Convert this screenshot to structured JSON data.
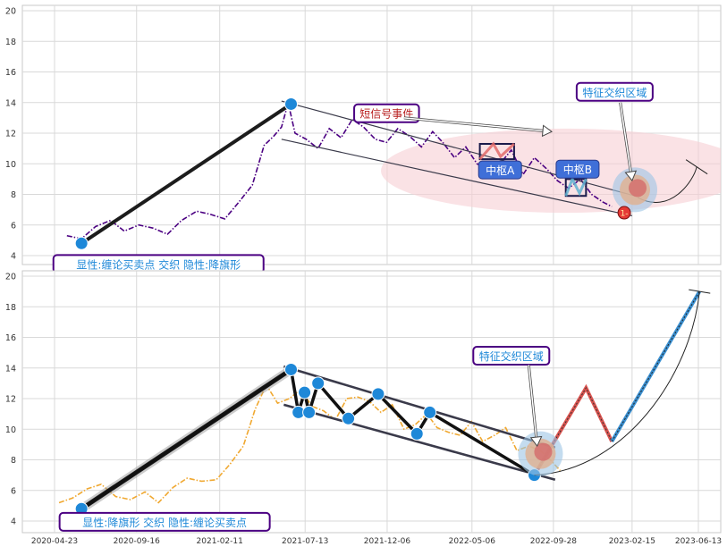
{
  "chart_data": [
    {
      "type": "line",
      "panel": "top",
      "ylim": [
        3.5,
        20.3
      ],
      "yticks": [
        4,
        6,
        8,
        10,
        12,
        14,
        16,
        18,
        20
      ],
      "grid": true,
      "series": [
        {
          "name": "",
          "color": "#4b0082",
          "style": "dashdot",
          "x": [
            "2020-05-15",
            "2020-06-10",
            "2020-07-05",
            "2020-08-01",
            "2020-08-25",
            "2020-09-20",
            "2020-10-15",
            "2020-11-10",
            "2020-12-05",
            "2021-01-01",
            "2021-01-25",
            "2021-02-20",
            "2021-03-15",
            "2021-04-10",
            "2021-05-01",
            "2021-05-18",
            "2021-06-01",
            "2021-06-10",
            "2021-06-14",
            "2021-06-25",
            "2021-07-15",
            "2021-08-05",
            "2021-08-25",
            "2021-09-15",
            "2021-10-05",
            "2021-10-25",
            "2021-11-15",
            "2021-12-05",
            "2021-12-25",
            "2022-01-15",
            "2022-02-05",
            "2022-02-25",
            "2022-03-15",
            "2022-04-05",
            "2022-04-25",
            "2022-05-15",
            "2022-06-05",
            "2022-06-25",
            "2022-07-15",
            "2022-08-05",
            "2022-08-25",
            "2022-09-15",
            "2022-10-05",
            "2022-10-25",
            "2022-11-15",
            "2022-12-05",
            "2022-12-25",
            "2023-01-10"
          ],
          "y": [
            5.3,
            5.1,
            5.9,
            6.3,
            5.6,
            6.0,
            5.8,
            5.4,
            6.3,
            6.9,
            6.7,
            6.4,
            7.4,
            8.6,
            11.2,
            11.8,
            12.4,
            13.6,
            13.8,
            12.0,
            11.6,
            11.0,
            12.3,
            11.7,
            12.9,
            12.4,
            11.6,
            11.4,
            12.3,
            11.8,
            11.1,
            12.1,
            11.4,
            10.4,
            11.1,
            10.0,
            9.6,
            10.0,
            10.9,
            9.3,
            10.4,
            9.7,
            8.9,
            8.4,
            9.0,
            8.0,
            7.5,
            7.2
          ]
        }
      ],
      "trend_line": {
        "x": [
          "2020-06-10",
          "2021-06-18"
        ],
        "y": [
          4.8,
          13.9
        ]
      },
      "channel_upper": {
        "x": [
          "2021-06-01",
          "2023-02-20"
        ],
        "y": [
          14.1,
          7.9
        ]
      },
      "channel_lower": {
        "x": [
          "2021-06-01",
          "2023-02-15"
        ],
        "y": [
          11.6,
          6.6
        ]
      },
      "markers": [
        {
          "x": "2020-06-10",
          "y": 4.8,
          "color": "#1e88d8"
        },
        {
          "x": "2021-06-18",
          "y": 13.9,
          "color": "#1e88d8"
        },
        {
          "x": "2023-02-01",
          "y": 6.8,
          "color": "#e53935",
          "label": "1-"
        }
      ],
      "zhongshu": [
        {
          "label": "中枢A",
          "x": [
            "2022-05-20",
            "2022-07-20"
          ],
          "y": [
            10.3,
            11.3
          ],
          "label_at": {
            "x": "2022-06-25",
            "y": 9.6
          }
        },
        {
          "label": "中枢B",
          "x": [
            "2022-10-20",
            "2022-11-25"
          ],
          "y": [
            7.9,
            9.0
          ],
          "label_at": {
            "x": "2022-11-10",
            "y": 9.65
          }
        }
      ],
      "annotations": [
        {
          "text": "短信号事件",
          "color": "#b71c1c",
          "x": "2021-12-05",
          "y": 13.3
        },
        {
          "text": "特征交织区域",
          "color": "#1e88d8",
          "x": "2023-01-15",
          "y": 14.7
        },
        {
          "text": "显性:缠论买卖点 交织 隐性:降旗形",
          "color": "#1e88d8",
          "x": "2020-10-25",
          "y": 3.45
        }
      ],
      "highlight_ellipse": {
        "x": [
          "2021-11-25",
          "2023-09-10"
        ],
        "y": [
          6.8,
          12.3
        ]
      },
      "focus_circle": {
        "x": "2023-02-20",
        "y": 8.3
      },
      "projection_arc": {
        "x": [
          "2023-02-25",
          "2023-06-10"
        ],
        "y": [
          7.8,
          9.8
        ]
      }
    },
    {
      "type": "line",
      "panel": "bottom",
      "ylim": [
        3.5,
        20.3
      ],
      "yticks": [
        4,
        6,
        8,
        10,
        12,
        14,
        16,
        18,
        20
      ],
      "xtick_labels": [
        "2020-04-23",
        "2020-09-16",
        "2021-02-11",
        "2021-07-13",
        "2021-12-06",
        "2022-05-06",
        "2022-09-28",
        "2023-02-15",
        "2023-06-13"
      ],
      "grid": true,
      "series": [
        {
          "name": "",
          "color": "#f0a830",
          "style": "dashdot",
          "x": [
            "2020-05-01",
            "2020-05-25",
            "2020-06-20",
            "2020-07-15",
            "2020-08-10",
            "2020-09-05",
            "2020-10-01",
            "2020-10-25",
            "2020-11-20",
            "2020-12-15",
            "2021-01-10",
            "2021-02-05",
            "2021-03-01",
            "2021-03-25",
            "2021-04-15",
            "2021-05-05",
            "2021-05-25",
            "2021-06-15",
            "2021-07-05",
            "2021-07-25",
            "2021-08-15",
            "2021-09-05",
            "2021-09-25",
            "2021-10-15",
            "2021-11-05",
            "2021-11-25",
            "2021-12-15",
            "2022-01-05",
            "2022-01-25",
            "2022-02-15",
            "2022-03-05",
            "2022-03-25",
            "2022-04-15",
            "2022-05-05",
            "2022-05-25",
            "2022-06-15",
            "2022-07-05",
            "2022-07-25",
            "2022-08-15",
            "2022-09-05",
            "2022-09-25",
            "2022-10-10"
          ],
          "y": [
            5.2,
            5.5,
            6.1,
            6.4,
            5.6,
            5.4,
            5.9,
            5.2,
            6.2,
            6.8,
            6.6,
            6.7,
            7.7,
            8.9,
            11.3,
            12.9,
            11.7,
            12.0,
            12.6,
            11.5,
            11.2,
            10.6,
            12.0,
            12.1,
            11.8,
            11.1,
            11.6,
            10.0,
            10.3,
            11.0,
            10.1,
            9.8,
            9.6,
            10.5,
            9.2,
            9.6,
            10.1,
            8.6,
            8.9,
            8.6,
            7.9,
            7.3
          ]
        }
      ],
      "zigzag": {
        "x": [
          "2020-06-10",
          "2021-06-18",
          "2021-07-01",
          "2021-07-12",
          "2021-07-20",
          "2021-08-05",
          "2021-09-28",
          "2021-11-20",
          "2022-01-28",
          "2022-02-20",
          "2022-08-25"
        ],
        "y": [
          4.8,
          13.9,
          11.1,
          12.4,
          11.1,
          13.0,
          10.7,
          12.3,
          9.7,
          11.1,
          7.0
        ]
      },
      "trend_line": {
        "x": [
          "2020-06-10",
          "2021-06-18"
        ],
        "y": [
          4.8,
          13.9
        ]
      },
      "channel_upper": {
        "x": [
          "2021-06-05",
          "2022-10-01"
        ],
        "y": [
          14.1,
          8.8
        ]
      },
      "channel_lower": {
        "x": [
          "2021-06-05",
          "2022-10-01"
        ],
        "y": [
          11.6,
          6.7
        ]
      },
      "forecast_red": {
        "x": [
          "2022-08-25",
          "2022-11-25",
          "2023-01-10"
        ],
        "y": [
          7.0,
          12.7,
          9.2
        ]
      },
      "forecast_blue": {
        "x": [
          "2023-01-10",
          "2023-06-15"
        ],
        "y": [
          9.2,
          19.0
        ]
      },
      "projection_arc": {
        "x": [
          "2022-08-25",
          "2023-06-15"
        ],
        "y": [
          7.0,
          19.0
        ]
      },
      "focus_circle": {
        "x": "2022-09-05",
        "y": 8.4
      },
      "annotations": [
        {
          "text": "特征交织区域",
          "color": "#1e88d8",
          "x": "2022-07-15",
          "y": 14.8
        },
        {
          "text": "显性:降旗形 交织 隐性:缠论买卖点",
          "color": "#1e88d8",
          "x": "2020-11-05",
          "y": 3.95
        }
      ]
    }
  ]
}
